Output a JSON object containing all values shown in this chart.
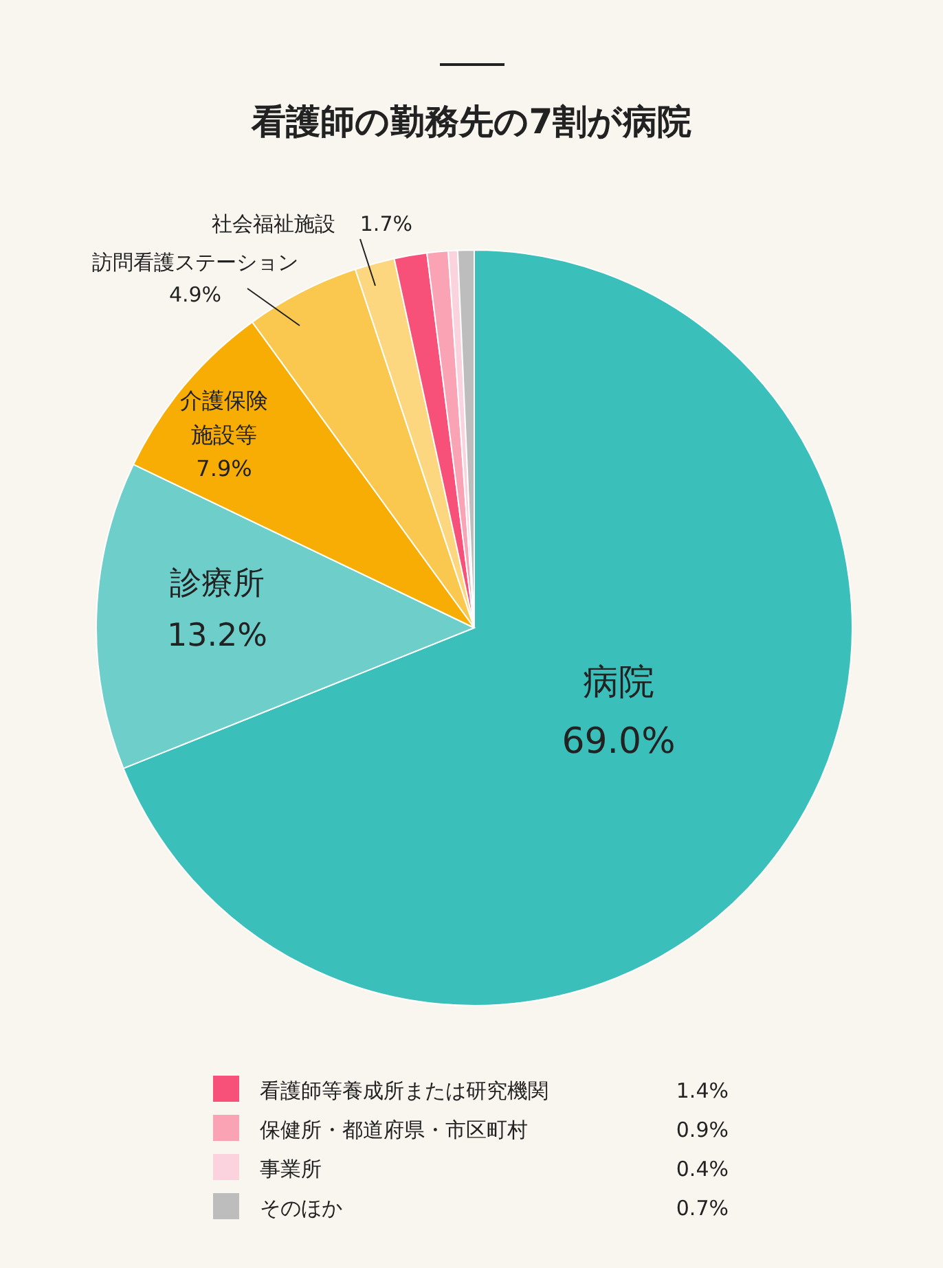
{
  "chart_data": {
    "type": "pie",
    "title": "看護師の勤務先の7割が病院",
    "categories": [
      "病院",
      "診療所",
      "介護保険施設等",
      "訪問看護ステーション",
      "社会福祉施設",
      "看護師等養成所または研究機関",
      "保健所・都道府県・市区町村",
      "事業所",
      "そのほか"
    ],
    "values": [
      69.0,
      13.2,
      7.9,
      4.9,
      1.7,
      1.4,
      0.9,
      0.4,
      0.7
    ],
    "colors": [
      "#3bbfba",
      "#6ecfca",
      "#f8ad04",
      "#fbc84f",
      "#fdd680",
      "#f7517a",
      "#f9a3b5",
      "#fbd3de",
      "#bdbdbd"
    ],
    "value_labels": [
      "69.0%",
      "13.2%",
      "7.9%",
      "4.9%",
      "1.7%",
      "1.4%",
      "0.9%",
      "0.4%",
      "0.7%"
    ],
    "legend": "bottom"
  }
}
